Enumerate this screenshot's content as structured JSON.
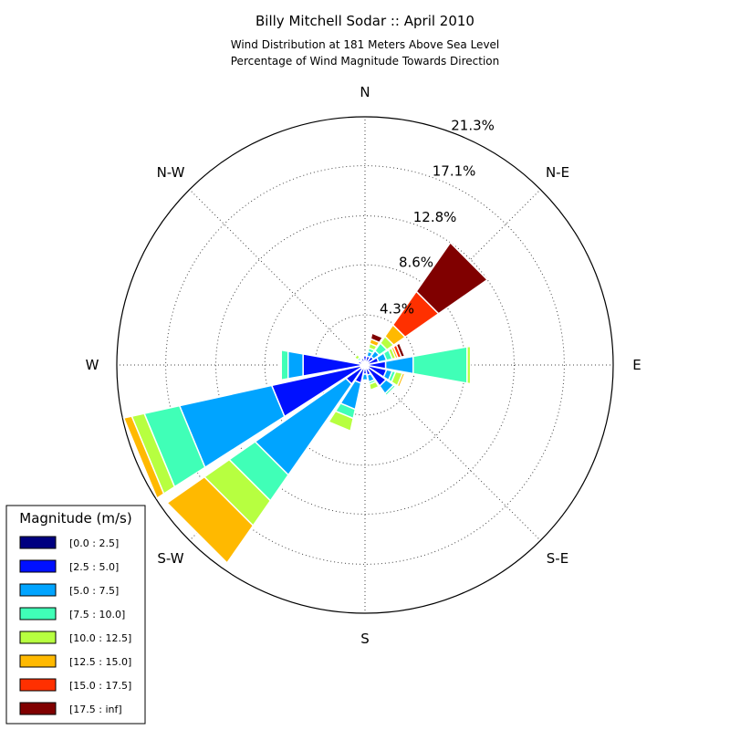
{
  "chart_data": {
    "type": "wind-rose",
    "title": "Billy Mitchell Sodar :: April 2010",
    "subtitle_lines": [
      "Wind Distribution at 181 Meters Above Sea Level",
      "Percentage of Wind Magnitude Towards Direction"
    ],
    "directions": [
      "N",
      "N-E",
      "E",
      "S-E",
      "S",
      "S-W",
      "W",
      "N-W"
    ],
    "radial_ticks": [
      "4.3%",
      "8.6%",
      "12.8%",
      "17.1%",
      "21.3%"
    ],
    "radial_tick_values": [
      4.3,
      8.6,
      12.8,
      17.1,
      21.3
    ],
    "radial_max": 21.3,
    "legend": {
      "title": "Magnitude (m/s)",
      "placement": "bottom-left",
      "items": [
        {
          "label": "[0.0 : 2.5]",
          "color": "#000080"
        },
        {
          "label": "[2.5 : 5.0]",
          "color": "#0010ff"
        },
        {
          "label": "[5.0 : 7.5]",
          "color": "#00a4ff"
        },
        {
          "label": "[7.5 : 10.0]",
          "color": "#40ffb7"
        },
        {
          "label": "[10.0 : 12.5]",
          "color": "#b7ff40"
        },
        {
          "label": "[12.5 : 15.0]",
          "color": "#ffb900"
        },
        {
          "label": "[15.0 : 17.5]",
          "color": "#ff3000"
        },
        {
          "label": "[17.5 : inf]",
          "color": "#800000"
        }
      ]
    },
    "sector_width_deg": 22.5,
    "sectors": [
      {
        "direction_deg": 0,
        "cumulative": [
          0.3,
          0.8
        ]
      },
      {
        "direction_deg": 22.5,
        "cumulative": [
          0.2,
          0.8,
          1.2,
          1.5,
          1.9,
          2.3,
          2.3,
          2.8
        ]
      },
      {
        "direction_deg": 45,
        "cumulative": [
          0.2,
          0.9,
          1.5,
          2.3,
          3.0,
          4.2,
          7.7,
          12.8
        ]
      },
      {
        "direction_deg": 67.5,
        "cumulative": [
          0.3,
          1.2,
          1.9,
          2.4,
          2.7,
          2.9,
          3.2,
          3.5
        ]
      },
      {
        "direction_deg": 90,
        "cumulative": [
          0.3,
          1.8,
          4.2,
          8.9,
          9.2
        ]
      },
      {
        "direction_deg": 112.5,
        "cumulative": [
          0.3,
          1.9,
          2.4,
          2.7,
          3.3,
          3.5
        ]
      },
      {
        "direction_deg": 135,
        "cumulative": [
          0.4,
          2.2,
          3.0,
          3.2
        ]
      },
      {
        "direction_deg": 157.5,
        "cumulative": [
          0.3,
          0.9,
          1.5,
          1.7,
          2.2
        ]
      },
      {
        "direction_deg": 180,
        "cumulative": [
          0.3,
          0.8,
          1.3
        ]
      },
      {
        "direction_deg": 202.5,
        "cumulative": [
          0.3,
          1.6,
          3.9,
          4.7,
          5.8
        ]
      },
      {
        "direction_deg": 225,
        "cumulative": [
          0.4,
          2.0,
          11.5,
          14.2,
          16.8,
          20.7
        ]
      },
      {
        "direction_deg": 247.5,
        "cumulative": [
          0.4,
          8.2,
          16.3,
          19.4,
          20.5,
          21.2
        ]
      },
      {
        "direction_deg": 270,
        "cumulative": [
          0.4,
          5.4,
          6.7,
          7.3,
          7.4
        ]
      },
      {
        "direction_deg": 292.5,
        "cumulative": [
          0.3,
          0.6
        ]
      },
      {
        "direction_deg": 315,
        "cumulative": [
          0.2,
          0.5,
          0.6,
          0.8,
          1.1
        ]
      },
      {
        "direction_deg": 337.5,
        "cumulative": [
          0.2,
          0.6
        ]
      }
    ]
  }
}
